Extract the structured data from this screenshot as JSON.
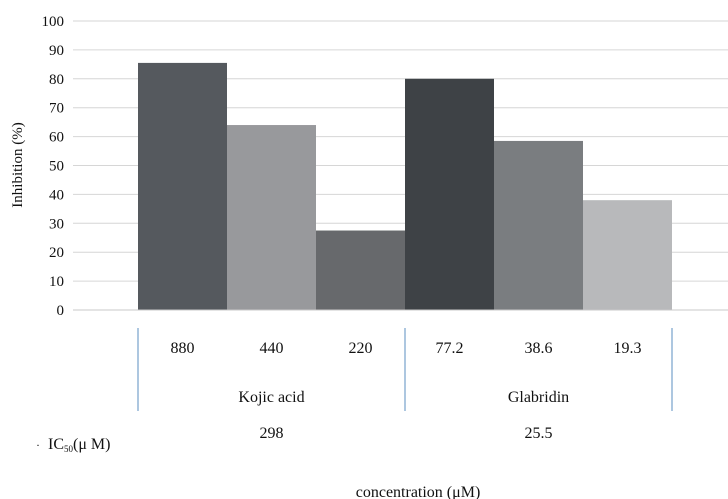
{
  "chart_data": {
    "type": "bar",
    "ylabel": "Inhibition (%)",
    "xlabel": "concentration (μM)",
    "ylim": [
      0,
      100
    ],
    "yticks": [
      0,
      10,
      20,
      30,
      40,
      50,
      60,
      70,
      80,
      90,
      100
    ],
    "grid": true,
    "groups": [
      {
        "name": "Kojic acid",
        "ic50": "298",
        "bars": [
          {
            "label": "880",
            "value": 85.5,
            "color": "#55595e"
          },
          {
            "label": "440",
            "value": 64,
            "color": "#98999c"
          },
          {
            "label": "220",
            "value": 27.5,
            "color": "#67696c"
          }
        ]
      },
      {
        "name": "Glabridin",
        "ic50": "25.5",
        "bars": [
          {
            "label": "77.2",
            "value": 80,
            "color": "#3e4246"
          },
          {
            "label": "38.6",
            "value": 58.5,
            "color": "#7a7d80"
          },
          {
            "label": "19.3",
            "value": 38,
            "color": "#b8b9bb"
          }
        ]
      }
    ],
    "ic50_label": {
      "prefix": "IC",
      "sub": "50",
      "suffix": "(μ M)"
    }
  }
}
